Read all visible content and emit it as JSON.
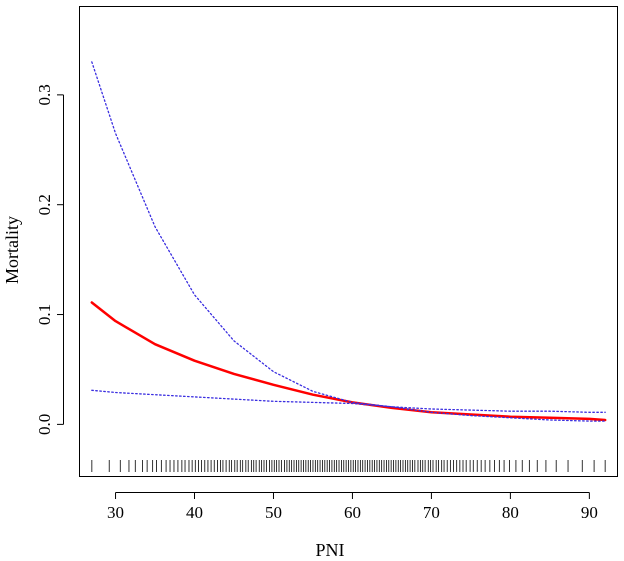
{
  "chart_data": {
    "type": "line",
    "xlabel": "PNI",
    "ylabel": "Mortality",
    "xlim": [
      25.5,
      93.5
    ],
    "ylim": [
      -0.047,
      0.38
    ],
    "x_ticks": [
      {
        "value": 30,
        "label": "30"
      },
      {
        "value": 40,
        "label": "40"
      },
      {
        "value": 50,
        "label": "50"
      },
      {
        "value": 60,
        "label": "60"
      },
      {
        "value": 70,
        "label": "70"
      },
      {
        "value": 80,
        "label": "80"
      },
      {
        "value": 90,
        "label": "90"
      }
    ],
    "y_ticks": [
      {
        "value": 0.0,
        "label": "0.0"
      },
      {
        "value": 0.1,
        "label": "0.1"
      },
      {
        "value": 0.2,
        "label": "0.2"
      },
      {
        "value": 0.3,
        "label": "0.3"
      }
    ],
    "grid": false,
    "series": [
      {
        "role": "estimate",
        "color": "#ff0000",
        "style": "solid",
        "x": [
          27,
          30,
          35,
          40,
          45,
          50,
          55,
          60,
          65,
          70,
          75,
          80,
          85,
          90,
          92
        ],
        "y": [
          0.111,
          0.094,
          0.073,
          0.058,
          0.046,
          0.036,
          0.027,
          0.02,
          0.015,
          0.011,
          0.009,
          0.007,
          0.006,
          0.005,
          0.004
        ]
      },
      {
        "role": "upper",
        "color": "#3a2ee0",
        "style": "dotted",
        "x": [
          27,
          30,
          35,
          40,
          45,
          50,
          55,
          60,
          65,
          70,
          75,
          80,
          85,
          90,
          92
        ],
        "y": [
          0.33,
          0.265,
          0.18,
          0.118,
          0.076,
          0.048,
          0.03,
          0.02,
          0.016,
          0.014,
          0.013,
          0.012,
          0.012,
          0.011,
          0.011
        ]
      },
      {
        "role": "lower",
        "color": "#3a2ee0",
        "style": "dotted",
        "x": [
          27,
          30,
          35,
          40,
          45,
          50,
          55,
          60,
          65,
          70,
          75,
          80,
          85,
          90,
          92
        ],
        "y": [
          0.031,
          0.029,
          0.027,
          0.025,
          0.023,
          0.021,
          0.02,
          0.019,
          0.016,
          0.011,
          0.008,
          0.006,
          0.004,
          0.003,
          0.003
        ]
      }
    ],
    "rug": {
      "color": "#000000",
      "x": [
        27.0,
        29.2,
        30.6,
        31.7,
        32.5,
        33.4,
        34.0,
        34.7,
        35.2,
        35.8,
        36.4,
        36.9,
        37.4,
        37.9,
        38.4,
        38.8,
        39.3,
        39.7,
        40.1,
        40.5,
        40.9,
        41.3,
        41.7,
        42.1,
        42.5,
        42.9,
        43.3,
        43.6,
        44.0,
        44.4,
        44.7,
        45.1,
        45.4,
        45.8,
        46.1,
        46.5,
        46.8,
        47.2,
        47.5,
        47.8,
        48.2,
        48.5,
        48.8,
        49.1,
        49.5,
        49.8,
        50.1,
        50.4,
        50.7,
        51.0,
        51.4,
        51.7,
        52.0,
        52.3,
        52.6,
        52.9,
        53.2,
        53.5,
        53.8,
        54.1,
        54.4,
        54.7,
        55.0,
        55.3,
        55.6,
        55.9,
        56.2,
        56.5,
        56.8,
        57.1,
        57.4,
        57.7,
        58.0,
        58.3,
        58.6,
        58.9,
        59.2,
        59.5,
        59.8,
        60.1,
        60.4,
        60.7,
        61.0,
        61.3,
        61.6,
        61.9,
        62.2,
        62.5,
        62.8,
        63.1,
        63.4,
        63.7,
        64.0,
        64.3,
        64.6,
        64.9,
        65.2,
        65.5,
        65.8,
        66.1,
        66.4,
        66.7,
        67.0,
        67.3,
        67.6,
        67.9,
        68.3,
        68.6,
        68.9,
        69.2,
        69.6,
        69.9,
        70.2,
        70.6,
        70.9,
        71.3,
        71.6,
        72.0,
        72.4,
        72.8,
        73.2,
        73.6,
        74.0,
        74.4,
        74.9,
        75.3,
        75.8,
        76.3,
        76.8,
        77.4,
        78.0,
        78.6,
        79.2,
        79.9,
        80.7,
        81.5,
        82.4,
        83.4,
        84.5,
        85.8,
        87.3,
        89.1,
        90.6,
        92.0
      ]
    }
  }
}
